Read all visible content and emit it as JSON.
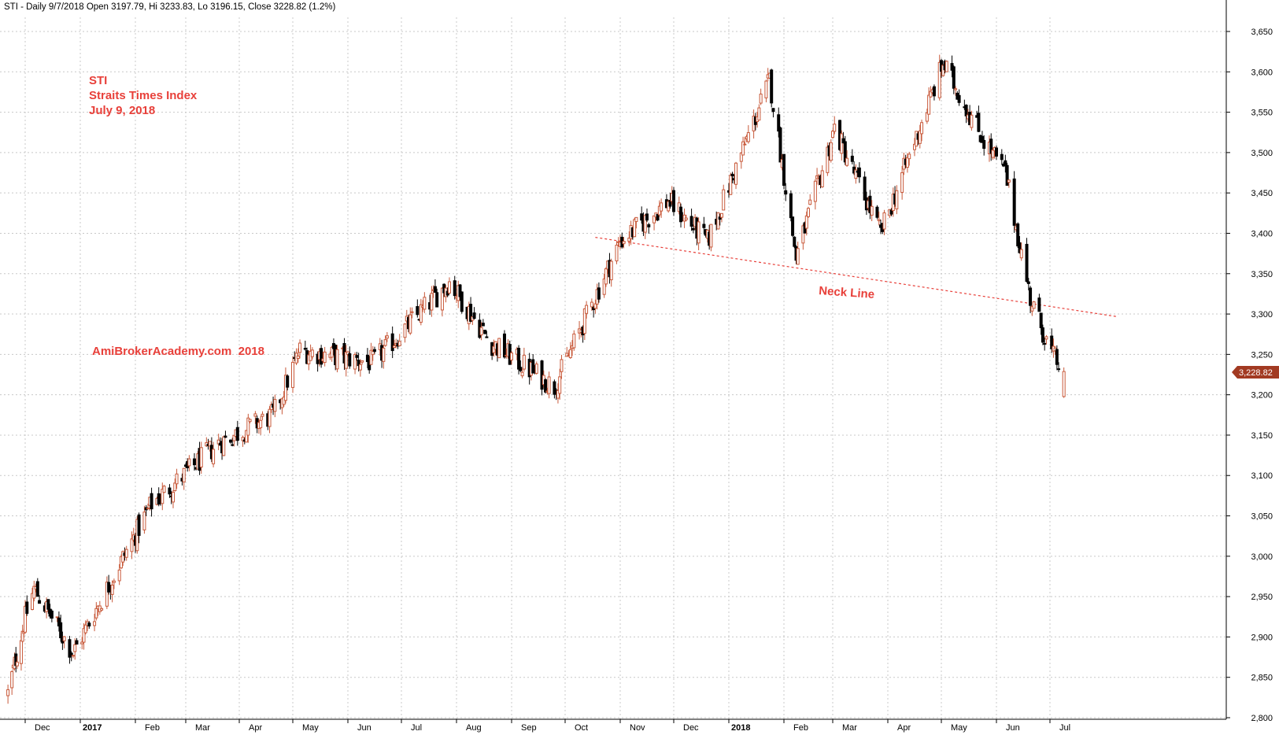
{
  "header_text": "STI - Daily 9/7/2018 Open 3197.79, Hi 3233.83, Lo 3196.15, Close 3228.82 (1.2%)",
  "annotation_lines": [
    "STI",
    "Straits Times Index",
    "July 9, 2018"
  ],
  "watermark": "AmiBrokerAcademy.com  2018",
  "neck_line_label": "Neck Line",
  "last_price_label": "3,228.82",
  "colors": {
    "up_candle": "#c8593a",
    "down_candle": "#000000",
    "annotation": "#e8403a",
    "neckline": "#e8403a",
    "grid": "#c8c8c8",
    "price_tag": "#a23a22"
  },
  "chart_data": {
    "type": "candlestick",
    "title": "",
    "ylim": [
      2800,
      3650
    ],
    "y_ticks": [
      "2,800",
      "2,850",
      "2,900",
      "2,950",
      "3,000",
      "3,050",
      "3,100",
      "3,150",
      "3,200",
      "3,250",
      "3,300",
      "3,350",
      "3,400",
      "3,450",
      "3,500",
      "3,550",
      "3,600",
      "3,650"
    ],
    "y_tick_values": [
      2800,
      2850,
      2900,
      2950,
      3000,
      3050,
      3100,
      3150,
      3200,
      3250,
      3300,
      3350,
      3400,
      3450,
      3500,
      3550,
      3600,
      3650
    ],
    "x_ticks": [
      "Dec",
      "2017",
      "Feb",
      "Mar",
      "Apr",
      "May",
      "Jun",
      "Jul",
      "Aug",
      "Sep",
      "Oct",
      "Nov",
      "Dec",
      "2018",
      "Feb",
      "Mar",
      "Apr",
      "May",
      "Jun",
      "Jul"
    ],
    "bold_x_ticks": [
      "2017",
      "2018"
    ],
    "grid": true,
    "last_close": 3228.82,
    "neckline": {
      "start": [
        "2017-10-18",
        3395
      ],
      "end": [
        "2018-08-08",
        3297
      ]
    },
    "key_points": [
      {
        "date": "2016-11-18",
        "close": 2830
      },
      {
        "date": "2016-12-06",
        "close": 2960
      },
      {
        "date": "2016-12-28",
        "close": 2880
      },
      {
        "date": "2017-02-10",
        "close": 3065
      },
      {
        "date": "2017-03-20",
        "close": 3140
      },
      {
        "date": "2017-04-20",
        "close": 3175
      },
      {
        "date": "2017-05-05",
        "close": 3255
      },
      {
        "date": "2017-06-15",
        "close": 3240
      },
      {
        "date": "2017-07-28",
        "close": 3340
      },
      {
        "date": "2017-08-20",
        "close": 3265
      },
      {
        "date": "2017-09-25",
        "close": 3210
      },
      {
        "date": "2017-11-01",
        "close": 3390
      },
      {
        "date": "2017-11-28",
        "close": 3440
      },
      {
        "date": "2017-12-20",
        "close": 3390
      },
      {
        "date": "2018-01-24",
        "close": 3590
      },
      {
        "date": "2018-02-08",
        "close": 3370
      },
      {
        "date": "2018-03-02",
        "close": 3530
      },
      {
        "date": "2018-03-28",
        "close": 3400
      },
      {
        "date": "2018-05-02",
        "close": 3610
      },
      {
        "date": "2018-05-25",
        "close": 3515
      },
      {
        "date": "2018-06-06",
        "close": 3475
      },
      {
        "date": "2018-06-20",
        "close": 3320
      },
      {
        "date": "2018-07-02",
        "close": 3250
      },
      {
        "date": "2018-07-09",
        "close": 3229
      }
    ]
  }
}
